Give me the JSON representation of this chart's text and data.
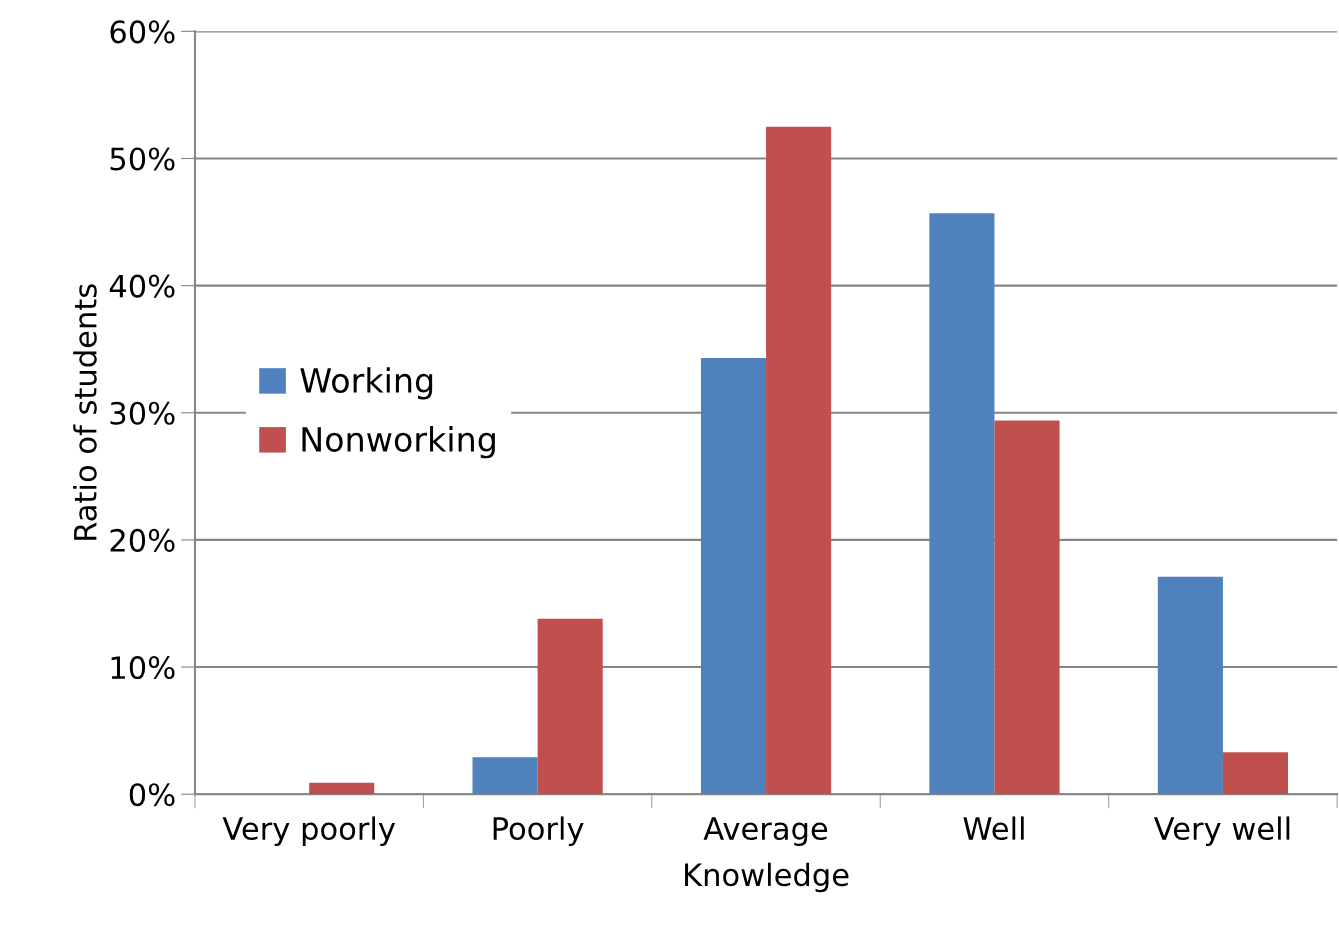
{
  "chart_data": {
    "type": "bar",
    "xlabel": "Knowledge",
    "ylabel": "Ratio of students",
    "categories": [
      "Very poorly",
      "Poorly",
      "Average",
      "Well",
      "Very well"
    ],
    "series": [
      {
        "name": "Working",
        "color": "#4f81bd",
        "values": [
          0,
          2.9,
          34.3,
          45.7,
          17.1
        ]
      },
      {
        "name": "Nonworking",
        "color": "#c0504d",
        "values": [
          0.9,
          13.8,
          52.5,
          29.4,
          3.3
        ]
      }
    ],
    "ylim": [
      0,
      60
    ],
    "yticks": [
      {
        "value": 0,
        "label": "0%"
      },
      {
        "value": 10,
        "label": "10%"
      },
      {
        "value": 20,
        "label": "20%"
      },
      {
        "value": 30,
        "label": "30%"
      },
      {
        "value": 40,
        "label": "40%"
      },
      {
        "value": 50,
        "label": "50%"
      },
      {
        "value": 60,
        "label": "60%"
      }
    ],
    "grid": "y",
    "legend": "left"
  }
}
